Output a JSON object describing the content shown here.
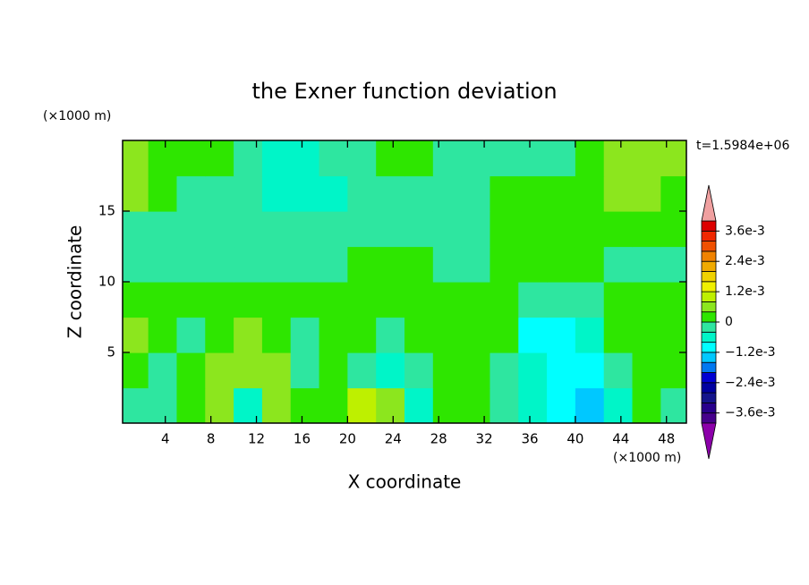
{
  "chart_data": {
    "type": "contour",
    "title": "the Exner function deviation",
    "xlabel": "X coordinate",
    "ylabel": "Z coordinate",
    "xunit": "(×1000 m)",
    "yunit": "(×1000 m)",
    "annotation": "t=1.5984e+06",
    "xlim": [
      0.25,
      49.75
    ],
    "ylim": [
      0,
      20
    ],
    "xticks": [
      4,
      8,
      12,
      16,
      20,
      24,
      28,
      32,
      36,
      40,
      44,
      48
    ],
    "yticks": [
      5,
      10,
      15
    ],
    "x": [
      1.25,
      3.75,
      6.25,
      8.75,
      11.25,
      13.75,
      16.25,
      18.75,
      21.25,
      23.75,
      26.25,
      28.75,
      31.25,
      33.75,
      36.25,
      38.75,
      41.25,
      43.75,
      46.25,
      48.75
    ],
    "y": [
      1.25,
      3.75,
      6.25,
      8.75,
      11.25,
      13.75,
      16.25,
      18.75
    ],
    "z": [
      [
        -0.0002,
        -0.0002,
        0.0002,
        0.0006,
        -0.0006,
        0.0006,
        0.0002,
        0.0002,
        0.001,
        0.0006,
        -0.0006,
        0.0002,
        0.0002,
        -0.0002,
        -0.0006,
        -0.001,
        -0.0014,
        -0.0006,
        0.0002,
        -0.0002
      ],
      [
        0.0002,
        -0.0002,
        0.0002,
        0.0006,
        0.0006,
        0.0006,
        -0.0002,
        0.0002,
        -0.0002,
        -0.0006,
        -0.0002,
        0.0002,
        0.0002,
        -0.0002,
        -0.0006,
        -0.001,
        -0.001,
        -0.0002,
        0.0002,
        0.0002
      ],
      [
        0.0006,
        0.0002,
        -0.0002,
        0.0002,
        0.0006,
        0.0002,
        -0.0002,
        0.0002,
        0.0002,
        -0.0002,
        0.0002,
        0.0002,
        0.0002,
        0.0002,
        -0.001,
        -0.001,
        -0.0006,
        0.0002,
        0.0002,
        0.0002
      ],
      [
        0.0002,
        0.0002,
        0.0002,
        0.0002,
        0.0002,
        0.0002,
        0.0002,
        0.0002,
        0.0002,
        0.0002,
        0.0002,
        0.0002,
        0.0002,
        0.0002,
        -0.0002,
        -0.0002,
        -0.0002,
        0.0002,
        0.0002,
        0.0002
      ],
      [
        -0.0002,
        -0.0002,
        -0.0002,
        -0.0002,
        -0.0002,
        -0.0002,
        -0.0002,
        -0.0002,
        0.0002,
        0.0002,
        0.0002,
        -0.0002,
        -0.0002,
        0.0002,
        0.0002,
        0.0002,
        0.0002,
        -0.0002,
        -0.0002,
        -0.0002
      ],
      [
        -0.0002,
        -0.0002,
        -0.0002,
        -0.0002,
        -0.0002,
        -0.0002,
        -0.0002,
        -0.0002,
        -0.0002,
        -0.0002,
        -0.0002,
        -0.0002,
        -0.0002,
        0.0002,
        0.0002,
        0.0002,
        0.0002,
        0.0002,
        0.0002,
        0.0002
      ],
      [
        0.0006,
        0.0002,
        -0.0002,
        -0.0002,
        -0.0002,
        -0.0006,
        -0.0006,
        -0.0006,
        -0.0002,
        -0.0002,
        -0.0002,
        -0.0002,
        -0.0002,
        0.0002,
        0.0002,
        0.0002,
        0.0002,
        0.0006,
        0.0006,
        0.0002
      ],
      [
        0.0006,
        0.0002,
        0.0002,
        0.0002,
        -0.0002,
        -0.0006,
        -0.0006,
        -0.0002,
        -0.0002,
        0.0002,
        0.0002,
        -0.0002,
        -0.0002,
        -0.0002,
        -0.0002,
        -0.0002,
        0.0002,
        0.0006,
        0.0006,
        0.0006
      ]
    ],
    "levels": [
      -0.004,
      -0.0036,
      -0.0032,
      -0.0028,
      -0.0024,
      -0.002,
      -0.0016,
      -0.0012,
      -0.0008,
      -0.0004,
      0,
      0.0004,
      0.0008,
      0.0012,
      0.0016,
      0.002,
      0.0024,
      0.0028,
      0.0032,
      0.0036,
      0.004
    ],
    "colors": [
      "#46008c",
      "#28008c",
      "#14148c",
      "#0000a0",
      "#0000d2",
      "#0078f0",
      "#00c8ff",
      "#00ffff",
      "#00f5c8",
      "#2ee6a0",
      "#2ee600",
      "#8ce61e",
      "#bef000",
      "#f0f000",
      "#f0d200",
      "#f0aa00",
      "#f08200",
      "#f05000",
      "#f02800",
      "#dc0000"
    ],
    "extend_colors": [
      "#8c00aa",
      "#f0a0a0"
    ],
    "colorbar_ticks": [
      {
        "value": 0.0036,
        "label": "3.6e-3"
      },
      {
        "value": 0.0024,
        "label": "2.4e-3"
      },
      {
        "value": 0.0012,
        "label": "1.2e-3"
      },
      0,
      {
        "value": -0.0012,
        "label": "−1.2e-3"
      },
      {
        "value": -0.0024,
        "label": "−2.4e-3"
      },
      {
        "value": -0.0036,
        "label": "−3.6e-3"
      }
    ]
  }
}
